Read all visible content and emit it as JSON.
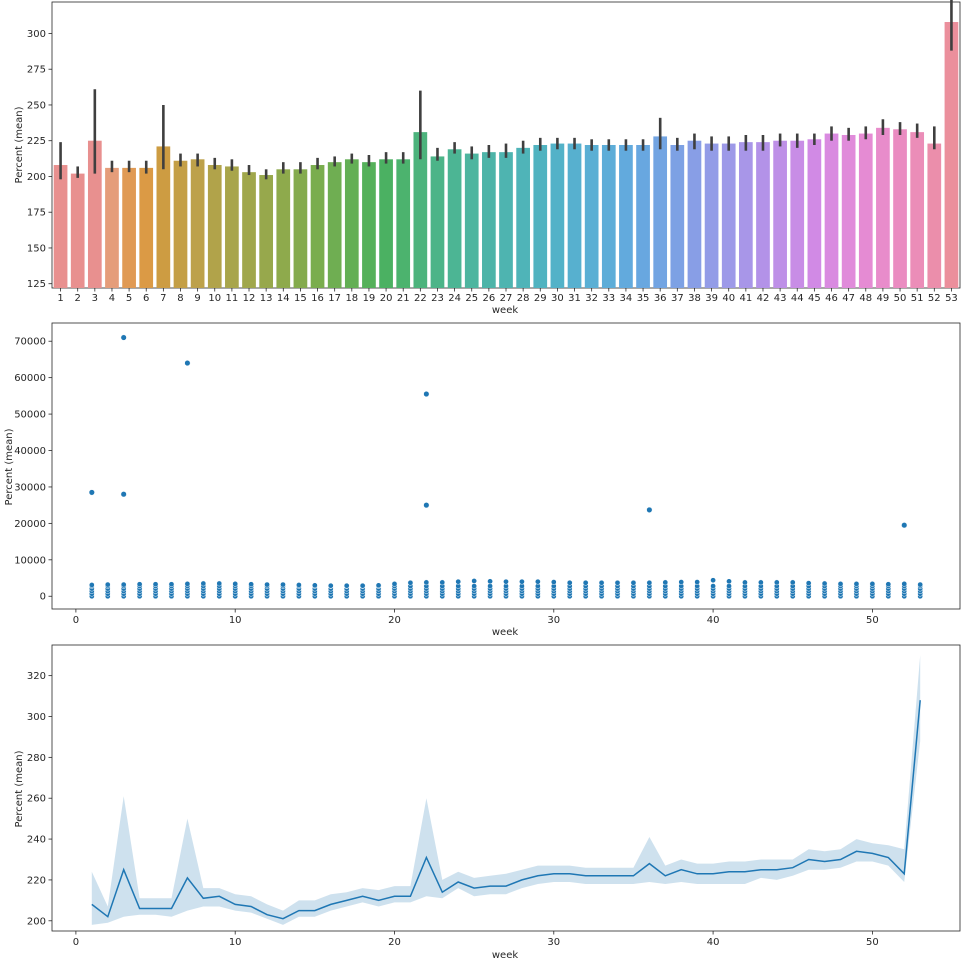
{
  "chart_data": [
    {
      "type": "bar",
      "xlabel": "week",
      "ylabel": "Percent (mean)",
      "ylim": [
        122,
        322
      ],
      "yticks": [
        125,
        150,
        175,
        200,
        225,
        250,
        275,
        300
      ],
      "categories": [
        "1",
        "2",
        "3",
        "4",
        "5",
        "6",
        "7",
        "8",
        "9",
        "10",
        "11",
        "12",
        "13",
        "14",
        "15",
        "16",
        "17",
        "18",
        "19",
        "20",
        "21",
        "22",
        "23",
        "24",
        "25",
        "26",
        "27",
        "28",
        "29",
        "30",
        "31",
        "32",
        "33",
        "34",
        "35",
        "36",
        "37",
        "38",
        "39",
        "40",
        "41",
        "42",
        "43",
        "44",
        "45",
        "46",
        "47",
        "48",
        "49",
        "50",
        "51",
        "52",
        "53"
      ],
      "values": [
        208,
        202,
        225,
        206,
        206,
        206,
        221,
        211,
        212,
        208,
        207,
        203,
        201,
        205,
        205,
        208,
        210,
        212,
        210,
        212,
        212,
        231,
        214,
        219,
        216,
        217,
        217,
        220,
        222,
        223,
        223,
        222,
        222,
        222,
        222,
        228,
        222,
        225,
        223,
        223,
        224,
        224,
        225,
        225,
        226,
        230,
        229,
        230,
        234,
        233,
        231,
        223,
        308
      ],
      "ci_low": [
        198,
        199,
        202,
        203,
        203,
        202,
        205,
        207,
        207,
        205,
        204,
        201,
        198,
        202,
        202,
        205,
        207,
        209,
        207,
        209,
        209,
        212,
        211,
        216,
        212,
        213,
        213,
        216,
        218,
        219,
        219,
        218,
        218,
        218,
        218,
        219,
        218,
        219,
        218,
        218,
        218,
        218,
        221,
        220,
        222,
        225,
        225,
        226,
        229,
        229,
        227,
        219,
        288
      ],
      "ci_high": [
        224,
        207,
        261,
        211,
        211,
        211,
        250,
        216,
        216,
        213,
        212,
        208,
        205,
        210,
        210,
        213,
        214,
        216,
        215,
        217,
        217,
        260,
        220,
        224,
        221,
        222,
        223,
        225,
        227,
        227,
        227,
        226,
        226,
        226,
        226,
        241,
        227,
        230,
        228,
        228,
        229,
        229,
        230,
        230,
        230,
        235,
        234,
        235,
        240,
        238,
        237,
        235,
        330
      ],
      "bar_colors": [
        "#e8908f",
        "#e8908f",
        "#e8908f",
        "#e59d7a",
        "#e09a54",
        "#db9a45",
        "#cd9c42",
        "#c49f46",
        "#bda14a",
        "#b1a34a",
        "#a8a54b",
        "#a0a74b",
        "#97a84c",
        "#8eaa4c",
        "#84ab4d",
        "#7aad4e",
        "#6fae52",
        "#63af55",
        "#55b15a",
        "#4bb162",
        "#4cb36e",
        "#4cb37c",
        "#4cb488",
        "#4cb594",
        "#4db59f",
        "#4db4a8",
        "#4eb4b0",
        "#4fb4b8",
        "#50b3c0",
        "#53b2c8",
        "#57b0cf",
        "#5aafd4",
        "#5dadd8",
        "#62aadd",
        "#68a7e0",
        "#72a4e2",
        "#7da1e4",
        "#889ee6",
        "#939ce7",
        "#9d99e8",
        "#a896e8",
        "#b392e8",
        "#be90e7",
        "#c88de6",
        "#d18ae5",
        "#d98ae0",
        "#e08bda",
        "#e58bd3",
        "#e88ccb",
        "#ea8cc1",
        "#eb8db8",
        "#eb8eab",
        "#eb8f9c"
      ]
    },
    {
      "type": "scatter",
      "xlabel": "week",
      "ylabel": "Percent (mean)",
      "xlim": [
        -1.5,
        55.5
      ],
      "ylim": [
        -3500,
        75000
      ],
      "xticks": [
        0,
        10,
        20,
        30,
        40,
        50
      ],
      "yticks": [
        0,
        10000,
        20000,
        30000,
        40000,
        50000,
        60000,
        70000
      ],
      "outliers": [
        {
          "x": 1,
          "y": 28500
        },
        {
          "x": 3,
          "y": 71000
        },
        {
          "x": 3,
          "y": 28000
        },
        {
          "x": 7,
          "y": 64000
        },
        {
          "x": 22,
          "y": 55500
        },
        {
          "x": 22,
          "y": 25000
        },
        {
          "x": 36,
          "y": 23700
        },
        {
          "x": 52,
          "y": 19500
        }
      ],
      "column_levels": [
        0,
        700,
        1400,
        2100,
        2800
      ],
      "column_tops": [
        3100,
        3200,
        3200,
        3300,
        3300,
        3300,
        3400,
        3500,
        3500,
        3400,
        3300,
        3200,
        3200,
        3100,
        3000,
        2900,
        2900,
        2900,
        3000,
        3400,
        3700,
        3800,
        3800,
        4000,
        4200,
        4100,
        4000,
        4000,
        4000,
        3900,
        3700,
        3700,
        3700,
        3700,
        3700,
        3700,
        3800,
        3900,
        3900,
        4400,
        4100,
        3800,
        3800,
        3800,
        3800,
        3600,
        3500,
        3400,
        3400,
        3400,
        3300,
        3400,
        3200
      ],
      "color": "#1f77b4"
    },
    {
      "type": "line",
      "xlabel": "week",
      "ylabel": "Percent (mean)",
      "xlim": [
        -1.5,
        55.5
      ],
      "ylim": [
        195,
        335
      ],
      "xticks": [
        0,
        10,
        20,
        30,
        40,
        50
      ],
      "yticks": [
        200,
        220,
        240,
        260,
        280,
        300,
        320
      ],
      "x": [
        1,
        2,
        3,
        4,
        5,
        6,
        7,
        8,
        9,
        10,
        11,
        12,
        13,
        14,
        15,
        16,
        17,
        18,
        19,
        20,
        21,
        22,
        23,
        24,
        25,
        26,
        27,
        28,
        29,
        30,
        31,
        32,
        33,
        34,
        35,
        36,
        37,
        38,
        39,
        40,
        41,
        42,
        43,
        44,
        45,
        46,
        47,
        48,
        49,
        50,
        51,
        52,
        53
      ],
      "color": "#1f77b4",
      "band_color": "#a6c8e0"
    }
  ]
}
